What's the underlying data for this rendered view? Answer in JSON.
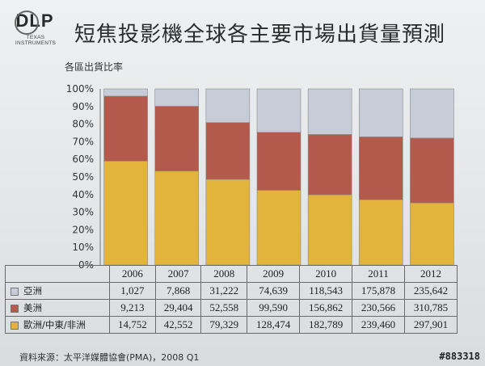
{
  "header": {
    "logo_text": "DLP",
    "logo_sub": "TEXAS INSTRUMENTS",
    "title": "短焦投影機全球各主要市場出貨量預測"
  },
  "chart_data": {
    "type": "bar",
    "stacked": "percent",
    "title": "短焦投影機全球各主要市場出貨量預測",
    "ylabel": "各區出貨比率",
    "xlabel": "",
    "ylim": [
      0,
      100
    ],
    "yticks": [
      "0%",
      "10%",
      "20%",
      "30%",
      "40%",
      "50%",
      "60%",
      "70%",
      "80%",
      "90%",
      "100%"
    ],
    "categories": [
      "2006",
      "2007",
      "2008",
      "2009",
      "2010",
      "2011",
      "2012"
    ],
    "series": [
      {
        "name": "歐洲/中東/非洲",
        "color": "#e3b43c",
        "values": [
          "14,752",
          "42,552",
          "79,329",
          "128,474",
          "182,789",
          "239,460",
          "297,901"
        ]
      },
      {
        "name": "美洲",
        "color": "#b45a4c",
        "values": [
          "9,213",
          "29,404",
          "52,558",
          "99,590",
          "156,862",
          "230,566",
          "310,785"
        ]
      },
      {
        "name": "亞洲",
        "color": "#c8cbd8",
        "values": [
          "1,027",
          "7,868",
          "31,222",
          "74,639",
          "118,543",
          "175,878",
          "235,642"
        ]
      }
    ],
    "grid": false
  },
  "table": {
    "rows_order": [
      "亞洲",
      "美洲",
      "歐洲/中東/非洲"
    ]
  },
  "footer": {
    "source": "資料來源：太平洋媒體協會(PMA)，2008 Q1",
    "watermark": "#883318"
  }
}
